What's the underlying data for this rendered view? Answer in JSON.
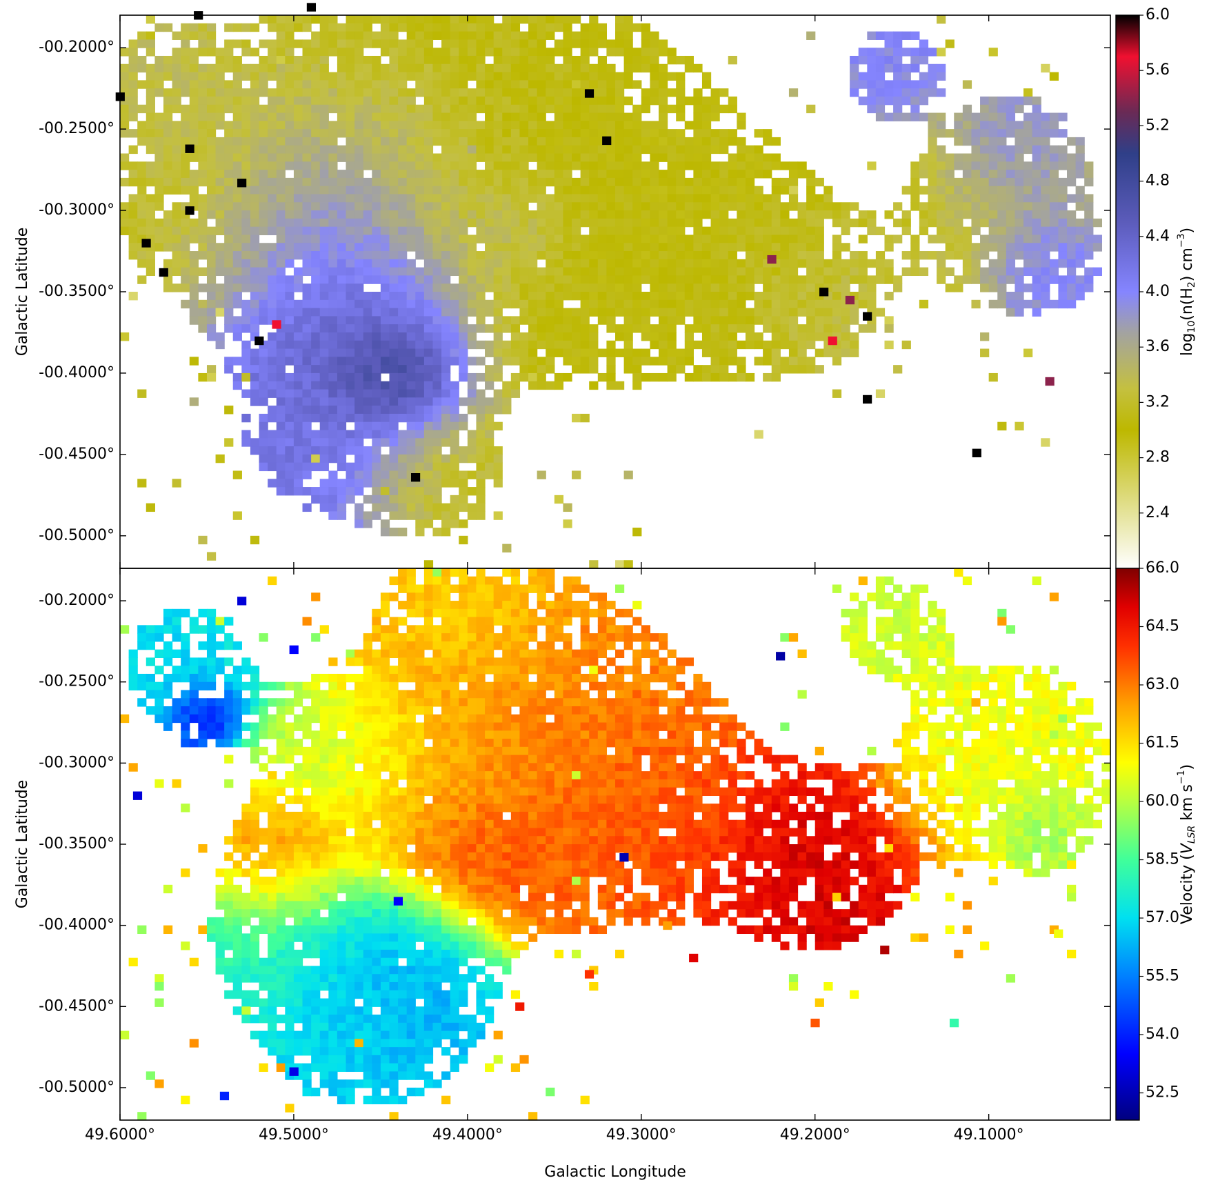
{
  "chart_data": [
    {
      "type": "heatmap",
      "panel": "top",
      "title": "",
      "xlabel": "",
      "ylabel": "Galactic Latitude",
      "xlim": [
        49.6,
        49.03
      ],
      "ylim": [
        -0.52,
        -0.18
      ],
      "yticks": [
        -0.2,
        -0.25,
        -0.3,
        -0.35,
        -0.4,
        -0.45,
        -0.5
      ],
      "ytick_labels": [
        "-00.2000°",
        "-00.2500°",
        "-00.3000°",
        "-00.3500°",
        "-00.4000°",
        "-00.4500°",
        "-00.5000°"
      ],
      "colorbar": {
        "label": "log10(n(H2) cm^-3)",
        "label_parts": {
          "a": "log",
          "a_sub": "10",
          "b": "(n(H",
          "b_sub": "2",
          "c": ") cm",
          "c_sup": "−3",
          "d": ")"
        },
        "range": [
          2.0,
          6.0
        ],
        "tick_values": [
          2.4,
          2.8,
          3.2,
          3.6,
          4.0,
          4.4,
          4.8,
          5.2,
          5.6,
          6.0
        ],
        "tick_labels": [
          "2.4",
          "2.8",
          "3.2",
          "3.6",
          "4.0",
          "4.4",
          "4.8",
          "5.2",
          "5.6",
          "6.0"
        ],
        "stops": [
          {
            "v": 2.0,
            "color": "#ffffff"
          },
          {
            "v": 3.0,
            "color": "#bdb800"
          },
          {
            "v": 3.3,
            "color": "#c4c040"
          },
          {
            "v": 3.7,
            "color": "#a3a3a0"
          },
          {
            "v": 4.0,
            "color": "#8585ff"
          },
          {
            "v": 4.5,
            "color": "#5c5cbb"
          },
          {
            "v": 5.0,
            "color": "#2f3f88"
          },
          {
            "v": 5.3,
            "color": "#6a2a55"
          },
          {
            "v": 5.7,
            "color": "#f01030"
          },
          {
            "v": 6.0,
            "color": "#000000"
          }
        ]
      },
      "regions": [
        {
          "l": 49.445,
          "b": -0.4,
          "s": 0.018,
          "value": 5.1,
          "weight": 1.1
        },
        {
          "l": 49.46,
          "b": -0.37,
          "s": 0.035,
          "value": 4.6,
          "weight": 1.0
        },
        {
          "l": 49.48,
          "b": -0.32,
          "s": 0.04,
          "value": 4.1,
          "weight": 0.8
        },
        {
          "l": 49.47,
          "b": -0.43,
          "s": 0.035,
          "value": 4.2,
          "weight": 0.8
        },
        {
          "l": 49.455,
          "b": -0.27,
          "s": 0.04,
          "value": 3.9,
          "weight": 0.55
        },
        {
          "l": 49.37,
          "b": -0.31,
          "s": 0.02,
          "value": 3.9,
          "weight": 0.5
        },
        {
          "l": 49.38,
          "b": -0.28,
          "s": 0.07,
          "value": 3.05,
          "weight": 0.8
        },
        {
          "l": 49.31,
          "b": -0.31,
          "s": 0.05,
          "value": 3.0,
          "weight": 0.8
        },
        {
          "l": 49.25,
          "b": -0.33,
          "s": 0.035,
          "value": 3.05,
          "weight": 0.7
        },
        {
          "l": 49.205,
          "b": -0.35,
          "s": 0.03,
          "value": 3.3,
          "weight": 0.65
        },
        {
          "l": 49.43,
          "b": -0.22,
          "s": 0.05,
          "value": 3.1,
          "weight": 0.7
        },
        {
          "l": 49.42,
          "b": -0.46,
          "s": 0.025,
          "value": 3.1,
          "weight": 0.65
        },
        {
          "l": 49.54,
          "b": -0.29,
          "s": 0.045,
          "value": 3.15,
          "weight": 0.55
        },
        {
          "l": 49.57,
          "b": -0.23,
          "s": 0.03,
          "value": 3.4,
          "weight": 0.5
        },
        {
          "l": 49.155,
          "b": -0.215,
          "s": 0.018,
          "value": 4.0,
          "weight": 0.65
        },
        {
          "l": 49.085,
          "b": -0.27,
          "s": 0.022,
          "value": 4.0,
          "weight": 0.8
        },
        {
          "l": 49.07,
          "b": -0.33,
          "s": 0.02,
          "value": 4.2,
          "weight": 0.7
        },
        {
          "l": 49.1,
          "b": -0.3,
          "s": 0.035,
          "value": 3.2,
          "weight": 0.55
        }
      ],
      "point_sources": [
        {
          "l": 49.17,
          "b": -0.416,
          "value": 6.0
        },
        {
          "l": 49.107,
          "b": -0.449,
          "value": 6.0
        },
        {
          "l": 49.065,
          "b": -0.405,
          "value": 5.4
        },
        {
          "l": 49.33,
          "b": -0.228,
          "value": 6.0
        },
        {
          "l": 49.32,
          "b": -0.257,
          "value": 6.0
        },
        {
          "l": 49.43,
          "b": -0.464,
          "value": 6.0
        },
        {
          "l": 49.575,
          "b": -0.338,
          "value": 6.0
        },
        {
          "l": 49.56,
          "b": -0.3,
          "value": 6.0
        },
        {
          "l": 49.585,
          "b": -0.32,
          "value": 6.0
        },
        {
          "l": 49.52,
          "b": -0.38,
          "value": 6.0
        },
        {
          "l": 49.51,
          "b": -0.37,
          "value": 5.7
        },
        {
          "l": 49.19,
          "b": -0.38,
          "value": 5.7
        },
        {
          "l": 49.225,
          "b": -0.33,
          "value": 5.4
        },
        {
          "l": 49.18,
          "b": -0.355,
          "value": 5.4
        },
        {
          "l": 49.53,
          "b": -0.283,
          "value": 6.0
        },
        {
          "l": 49.555,
          "b": -0.18,
          "value": 6.0
        },
        {
          "l": 49.49,
          "b": -0.175,
          "value": 6.0
        },
        {
          "l": 49.6,
          "b": -0.23,
          "value": 6.0
        },
        {
          "l": 49.56,
          "b": -0.262,
          "value": 6.0
        },
        {
          "l": 49.195,
          "b": -0.35,
          "value": 6.0
        },
        {
          "l": 49.17,
          "b": -0.365,
          "value": 6.0
        }
      ],
      "scatter": [
        {
          "l0": 49.6,
          "l1": 49.3,
          "b0": -0.52,
          "b1": -0.18,
          "value": 3.05
        },
        {
          "l0": 49.25,
          "l1": 49.05,
          "b0": -0.45,
          "b1": -0.18,
          "value": 3.05
        }
      ]
    },
    {
      "type": "heatmap",
      "panel": "bottom",
      "title": "",
      "xlabel": "Galactic Longitude",
      "ylabel": "Galactic Latitude",
      "xlim": [
        49.6,
        49.03
      ],
      "ylim": [
        -0.52,
        -0.18
      ],
      "xticks": [
        49.6,
        49.5,
        49.4,
        49.3,
        49.2,
        49.1
      ],
      "xtick_labels": [
        "49.6000°",
        "49.5000°",
        "49.4000°",
        "49.3000°",
        "49.2000°",
        "49.1000°"
      ],
      "yticks": [
        -0.2,
        -0.25,
        -0.3,
        -0.35,
        -0.4,
        -0.45,
        -0.5
      ],
      "ytick_labels": [
        "-00.2000°",
        "-00.2500°",
        "-00.3000°",
        "-00.3500°",
        "-00.4000°",
        "-00.4500°",
        "-00.5000°"
      ],
      "colorbar": {
        "label": "Velocity (V_LSR km s^-1)",
        "label_parts": {
          "a": "Velocity (",
          "a_it": "V",
          "a_sub": "LSR",
          "b": " km s",
          "b_sup": "−1",
          "c": ")"
        },
        "range": [
          51.8,
          66.0
        ],
        "tick_values": [
          52.5,
          54.0,
          55.5,
          57.0,
          58.5,
          60.0,
          61.5,
          63.0,
          64.5,
          66.0
        ],
        "tick_labels": [
          "52.5",
          "54.0",
          "55.5",
          "57.0",
          "58.5",
          "60.0",
          "61.5",
          "63.0",
          "64.5",
          "66.0"
        ],
        "stops": [
          {
            "v": 51.8,
            "color": "#00007f"
          },
          {
            "v": 53.5,
            "color": "#0000ff"
          },
          {
            "v": 55.5,
            "color": "#0080ff"
          },
          {
            "v": 57.0,
            "color": "#00e0f0"
          },
          {
            "v": 58.5,
            "color": "#40ff9a"
          },
          {
            "v": 60.0,
            "color": "#b8ff40"
          },
          {
            "v": 61.0,
            "color": "#ffff00"
          },
          {
            "v": 62.5,
            "color": "#ffa000"
          },
          {
            "v": 64.0,
            "color": "#ff3000"
          },
          {
            "v": 65.0,
            "color": "#e00000"
          },
          {
            "v": 66.0,
            "color": "#7f0000"
          }
        ]
      },
      "regions": [
        {
          "l": 49.44,
          "b": -0.43,
          "s": 0.03,
          "value": 55.8,
          "weight": 1.1
        },
        {
          "l": 49.46,
          "b": -0.46,
          "s": 0.03,
          "value": 56.8,
          "weight": 0.9
        },
        {
          "l": 49.49,
          "b": -0.41,
          "s": 0.035,
          "value": 58.0,
          "weight": 0.8
        },
        {
          "l": 49.47,
          "b": -0.3,
          "s": 0.03,
          "value": 59.8,
          "weight": 0.7
        },
        {
          "l": 49.36,
          "b": -0.29,
          "s": 0.06,
          "value": 62.8,
          "weight": 0.8
        },
        {
          "l": 49.42,
          "b": -0.31,
          "s": 0.035,
          "value": 62.0,
          "weight": 0.6
        },
        {
          "l": 49.3,
          "b": -0.33,
          "s": 0.04,
          "value": 63.8,
          "weight": 0.6
        },
        {
          "l": 49.2,
          "b": -0.36,
          "s": 0.035,
          "value": 65.0,
          "weight": 0.75
        },
        {
          "l": 49.4,
          "b": -0.36,
          "s": 0.03,
          "value": 64.5,
          "weight": 0.5
        },
        {
          "l": 49.5,
          "b": -0.36,
          "s": 0.025,
          "value": 64.2,
          "weight": 0.5
        },
        {
          "l": 49.4,
          "b": -0.21,
          "s": 0.03,
          "value": 61.5,
          "weight": 0.55
        },
        {
          "l": 49.56,
          "b": -0.24,
          "s": 0.03,
          "value": 57.0,
          "weight": 0.45
        },
        {
          "l": 49.55,
          "b": -0.27,
          "s": 0.012,
          "value": 53.0,
          "weight": 0.6
        },
        {
          "l": 49.155,
          "b": -0.215,
          "s": 0.02,
          "value": 60.3,
          "weight": 0.6
        },
        {
          "l": 49.09,
          "b": -0.3,
          "s": 0.04,
          "value": 60.8,
          "weight": 0.7
        },
        {
          "l": 49.07,
          "b": -0.34,
          "s": 0.015,
          "value": 59.0,
          "weight": 0.5
        }
      ],
      "point_sources": [
        {
          "l": 49.22,
          "b": -0.234,
          "value": 52.3
        },
        {
          "l": 49.31,
          "b": -0.358,
          "value": 52.5
        },
        {
          "l": 49.44,
          "b": -0.385,
          "value": 53.5
        },
        {
          "l": 49.59,
          "b": -0.32,
          "value": 53.0
        },
        {
          "l": 49.5,
          "b": -0.49,
          "value": 53.2
        },
        {
          "l": 49.54,
          "b": -0.505,
          "value": 54.0
        },
        {
          "l": 49.5,
          "b": -0.23,
          "value": 53.5
        },
        {
          "l": 49.53,
          "b": -0.2,
          "value": 53.0
        },
        {
          "l": 49.06,
          "b": -0.405,
          "value": 60.8
        },
        {
          "l": 49.16,
          "b": -0.415,
          "value": 65.5
        },
        {
          "l": 49.33,
          "b": -0.43,
          "value": 64.0
        },
        {
          "l": 49.37,
          "b": -0.45,
          "value": 64.5
        },
        {
          "l": 49.12,
          "b": -0.46,
          "value": 58.2
        },
        {
          "l": 49.2,
          "b": -0.46,
          "value": 63.5
        },
        {
          "l": 49.285,
          "b": -0.4,
          "value": 62.5
        },
        {
          "l": 49.27,
          "b": -0.42,
          "value": 65.0
        }
      ],
      "scatter": [
        {
          "l0": 49.6,
          "l1": 49.3,
          "b0": -0.52,
          "b1": -0.18,
          "value": 61.0
        },
        {
          "l0": 49.25,
          "l1": 49.05,
          "b0": -0.45,
          "b1": -0.18,
          "value": 61.0
        }
      ]
    }
  ]
}
